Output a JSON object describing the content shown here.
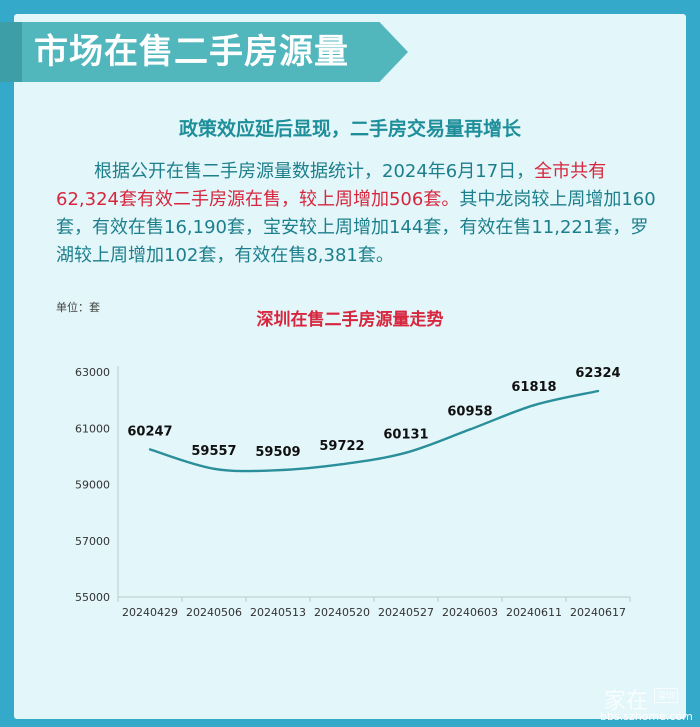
{
  "header": {
    "title": "市场在售二手房源量"
  },
  "article": {
    "subtitle": "政策效应延后显现，二手房交易量再增长",
    "p_part1": "根据公开在售二手房源量数据统计，2024年6月17日，",
    "p_highlight": "全市共有62,324套有效二手房源在售，较上周增加506套。",
    "p_part2": "其中龙岗较上周增加160套，有效在售16,190套，宝安较上周增加144套，有效在售11,221套，罗湖较上周增加102套，有效在售8,381套。"
  },
  "chart_data": {
    "type": "line",
    "title": "深圳在售二手房源量走势",
    "unit_label": "单位：套",
    "categories": [
      "20240429",
      "20240506",
      "20240513",
      "20240520",
      "20240527",
      "20240603",
      "20240611",
      "20240617"
    ],
    "values": [
      60247,
      59557,
      59509,
      59722,
      60131,
      60958,
      61818,
      62324
    ],
    "data_labels": [
      "60247",
      "59557",
      "59509",
      "59722",
      "60131",
      "60958",
      "61818",
      "62324"
    ],
    "y_ticks": [
      "55000",
      "57000",
      "59000",
      "61000",
      "63000"
    ],
    "y_tick_values": [
      55000,
      57000,
      59000,
      61000,
      63000
    ],
    "ylim": [
      55000,
      63000
    ],
    "grid": false,
    "line_color": "#2a8f9b"
  },
  "watermark": {
    "brand": "家在",
    "city": "深圳",
    "url": "bbs.szhome.com"
  }
}
